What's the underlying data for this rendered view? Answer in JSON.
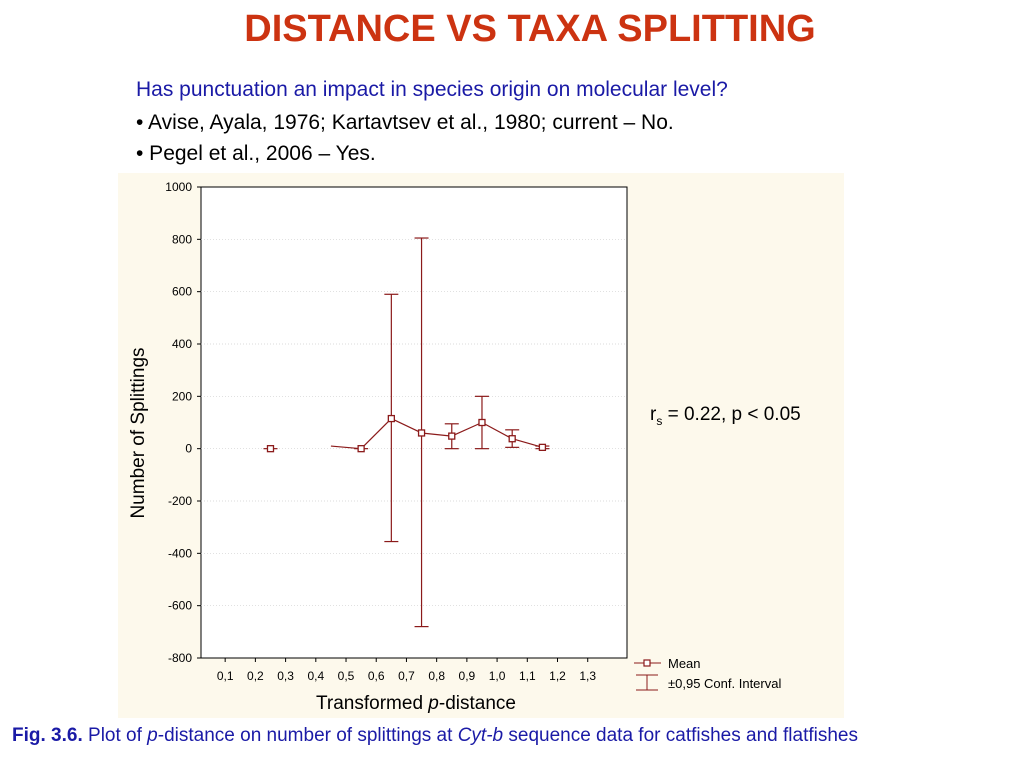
{
  "slide": {
    "title": "DISTANCE VS TAXA SPLITTING",
    "question": "Has punctuation an impact in species origin on molecular level?",
    "bullets": [
      "• Avise, Ayala, 1976; Kartavtsev et al., 1980; current – No.",
      "• Pegel et al., 2006 – Yes."
    ],
    "caption_label": "Fig. 3.6.",
    "caption_part1": " Plot of ",
    "caption_p": "p",
    "caption_part2": "-distance on number of splittings at ",
    "caption_cytb": "Cyt-b",
    "caption_part3": " sequence data for catfishes and flatfishes"
  },
  "colors": {
    "title": "#cc3311",
    "question": "#1a1aa6",
    "series": "#8b1a1a",
    "panel": "#fdf9ec"
  },
  "chart_data": {
    "type": "line",
    "ylabel": "Number of Splittings",
    "xlabel_prefix": "Transformed ",
    "xlabel_italic": "p",
    "xlabel_suffix": "-distance",
    "ylim": [
      -800,
      1000
    ],
    "yticks": [
      1000,
      800,
      600,
      400,
      200,
      0,
      -200,
      -400,
      -600,
      -800
    ],
    "xlim": [
      0.02,
      1.43
    ],
    "xticks": [
      "0,1",
      "0,2",
      "0,3",
      "0,4",
      "0,5",
      "0,6",
      "0,7",
      "0,8",
      "0,9",
      "1,0",
      "1,1",
      "1,2",
      "1,3"
    ],
    "xtick_values": [
      0.1,
      0.2,
      0.3,
      0.4,
      0.5,
      0.6,
      0.7,
      0.8,
      0.9,
      1.0,
      1.1,
      1.2,
      1.3
    ],
    "annotation_r": "r",
    "annotation_sub": "s",
    "annotation_rest": " = 0.22, p < 0.05",
    "legend": {
      "mean": "Mean",
      "ci": "±0,95 Conf. Interval"
    },
    "series": [
      {
        "name": "Mean",
        "points": [
          {
            "x": 0.25,
            "y": 0,
            "lo": 0,
            "hi": 0
          },
          {
            "x": 0.55,
            "y": 0,
            "lo": 0,
            "hi": 0
          },
          {
            "x": 0.65,
            "y": 115,
            "lo": -355,
            "hi": 590
          },
          {
            "x": 0.75,
            "y": 60,
            "lo": -680,
            "hi": 805
          },
          {
            "x": 0.85,
            "y": 48,
            "lo": 0,
            "hi": 95
          },
          {
            "x": 0.95,
            "y": 100,
            "lo": 0,
            "hi": 200
          },
          {
            "x": 1.05,
            "y": 38,
            "lo": 5,
            "hi": 72
          },
          {
            "x": 1.15,
            "y": 5,
            "lo": 0,
            "hi": 10
          }
        ],
        "line_start": {
          "x": 0.45,
          "y": 10
        }
      }
    ]
  }
}
